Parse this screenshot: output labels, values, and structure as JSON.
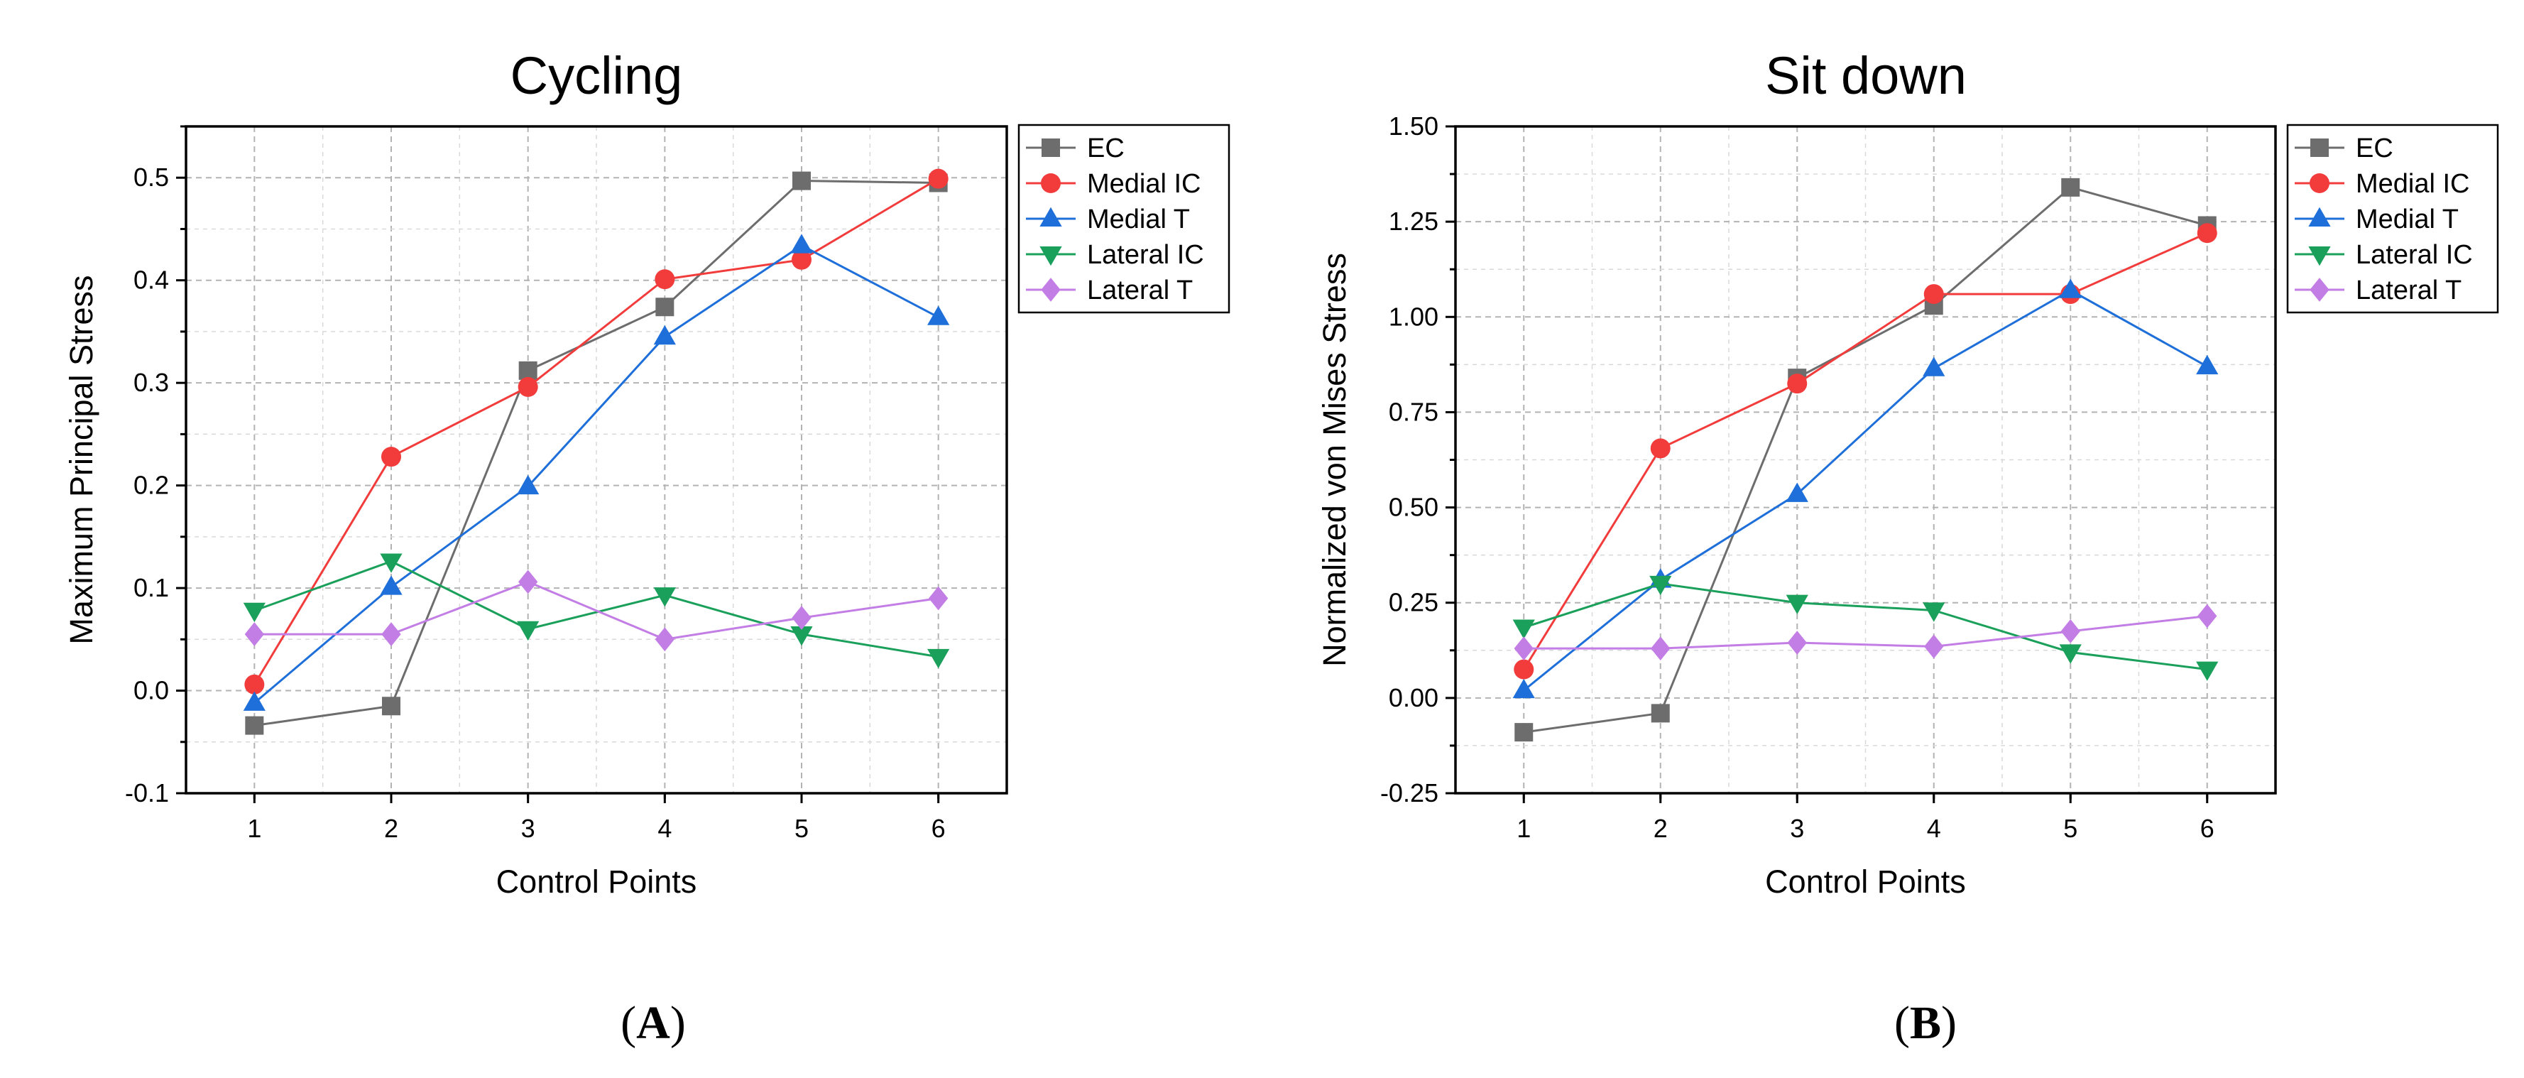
{
  "chart_data": [
    {
      "type": "line",
      "title": "Cycling",
      "xlabel": "Control Points",
      "ylabel": "Maximum Principal Stress",
      "x": [
        1,
        2,
        3,
        4,
        5,
        6
      ],
      "xlim": [
        0.5,
        6.5
      ],
      "ylim": [
        -0.1,
        0.55
      ],
      "yticks": [
        -0.1,
        0.0,
        0.1,
        0.2,
        0.3,
        0.4,
        0.5
      ],
      "ytick_labels": [
        "-0.1",
        "0.0",
        "0.1",
        "0.2",
        "0.3",
        "0.4",
        "0.5"
      ],
      "xtick_labels": [
        "1",
        "2",
        "3",
        "4",
        "5",
        "6"
      ],
      "grid": true,
      "legend_position": "top-right",
      "caption": "A",
      "series": [
        {
          "name": "EC",
          "color": "#6d6d6d",
          "marker": "square",
          "values": [
            -0.034,
            -0.015,
            0.312,
            0.374,
            0.497,
            0.495
          ]
        },
        {
          "name": "Medial IC",
          "color": "#f23c3c",
          "marker": "circle",
          "values": [
            0.006,
            0.228,
            0.296,
            0.401,
            0.42,
            0.499
          ]
        },
        {
          "name": "Medial T",
          "color": "#1e6fd9",
          "marker": "triangle-up",
          "values": [
            -0.012,
            0.101,
            0.199,
            0.345,
            0.434,
            0.364
          ]
        },
        {
          "name": "Lateral IC",
          "color": "#1aa05a",
          "marker": "triangle-down",
          "values": [
            0.078,
            0.126,
            0.06,
            0.093,
            0.055,
            0.033
          ]
        },
        {
          "name": "Lateral T",
          "color": "#c37ee6",
          "marker": "diamond",
          "values": [
            0.055,
            0.055,
            0.106,
            0.05,
            0.071,
            0.09
          ]
        }
      ]
    },
    {
      "type": "line",
      "title": "Sit down",
      "xlabel": "Control Points",
      "ylabel": "Normalized von Mises Stress",
      "x": [
        1,
        2,
        3,
        4,
        5,
        6
      ],
      "xlim": [
        0.5,
        6.5
      ],
      "ylim": [
        -0.25,
        1.5
      ],
      "yticks": [
        -0.25,
        0.0,
        0.25,
        0.5,
        0.75,
        1.0,
        1.25,
        1.5
      ],
      "ytick_labels": [
        "-0.25",
        "0.00",
        "0.25",
        "0.50",
        "0.75",
        "1.00",
        "1.25",
        "1.50"
      ],
      "xtick_labels": [
        "1",
        "2",
        "3",
        "4",
        "5",
        "6"
      ],
      "grid": true,
      "legend_position": "top-right",
      "caption": "B",
      "series": [
        {
          "name": "EC",
          "color": "#6d6d6d",
          "marker": "square",
          "values": [
            -0.09,
            -0.04,
            0.84,
            1.03,
            1.34,
            1.24
          ]
        },
        {
          "name": "Medial IC",
          "color": "#f23c3c",
          "marker": "circle",
          "values": [
            0.075,
            0.655,
            0.825,
            1.06,
            1.06,
            1.22
          ]
        },
        {
          "name": "Medial T",
          "color": "#1e6fd9",
          "marker": "triangle-up",
          "values": [
            0.02,
            0.31,
            0.535,
            0.865,
            1.07,
            0.87
          ]
        },
        {
          "name": "Lateral IC",
          "color": "#1aa05a",
          "marker": "triangle-down",
          "values": [
            0.185,
            0.3,
            0.25,
            0.23,
            0.12,
            0.075
          ]
        },
        {
          "name": "Lateral T",
          "color": "#c37ee6",
          "marker": "diamond",
          "values": [
            0.13,
            0.13,
            0.145,
            0.135,
            0.175,
            0.215
          ]
        }
      ]
    }
  ]
}
